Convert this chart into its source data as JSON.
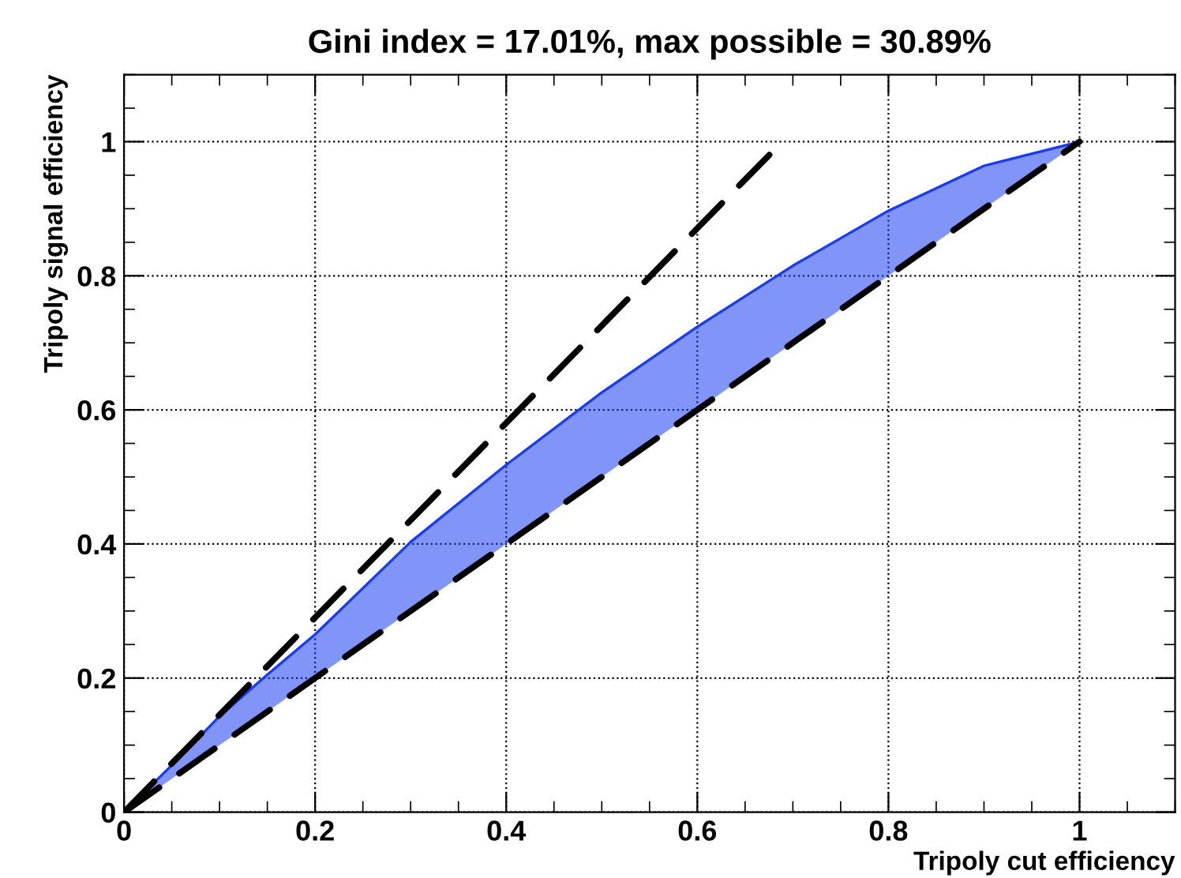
{
  "chart_data": {
    "type": "line",
    "title": "Gini index = 17.01%, max possible = 30.89%",
    "xlabel": "Tripoly cut efficiency",
    "ylabel": "Tripoly signal efficiency",
    "xlim": [
      0,
      1.1
    ],
    "ylim": [
      0,
      1.1
    ],
    "xticks": [
      0,
      0.2,
      0.4,
      0.6,
      0.8,
      1
    ],
    "yticks": [
      0,
      0.2,
      0.4,
      0.6,
      0.8,
      1
    ],
    "grid": true,
    "line_style": "solid",
    "marker": "none",
    "series": [
      {
        "color": "#1a3cf0",
        "x": [
          0,
          0.05,
          0.1,
          0.15,
          0.2,
          0.3,
          0.4,
          0.5,
          0.6,
          0.7,
          0.8,
          0.9,
          1
        ],
        "values": [
          0,
          0.07,
          0.143,
          0.205,
          0.265,
          0.403,
          0.518,
          0.626,
          0.724,
          0.815,
          0.897,
          0.964,
          1
        ],
        "lower": [
          0,
          0.05,
          0.1,
          0.15,
          0.2,
          0.3,
          0.4,
          0.5,
          0.6,
          0.7,
          0.8,
          0.9,
          1
        ],
        "upper": [
          0,
          0.07,
          0.143,
          0.205,
          0.265,
          0.403,
          0.518,
          0.626,
          0.724,
          0.815,
          0.897,
          0.964,
          1
        ]
      },
      {
        "color": "#000000",
        "line_style": "dashed",
        "x": [
          0,
          1
        ],
        "values": [
          0,
          1
        ]
      },
      {
        "color": "#000000",
        "line_style": "dashed",
        "x": [
          0,
          0.689
        ],
        "values": [
          0,
          1
        ]
      }
    ]
  }
}
